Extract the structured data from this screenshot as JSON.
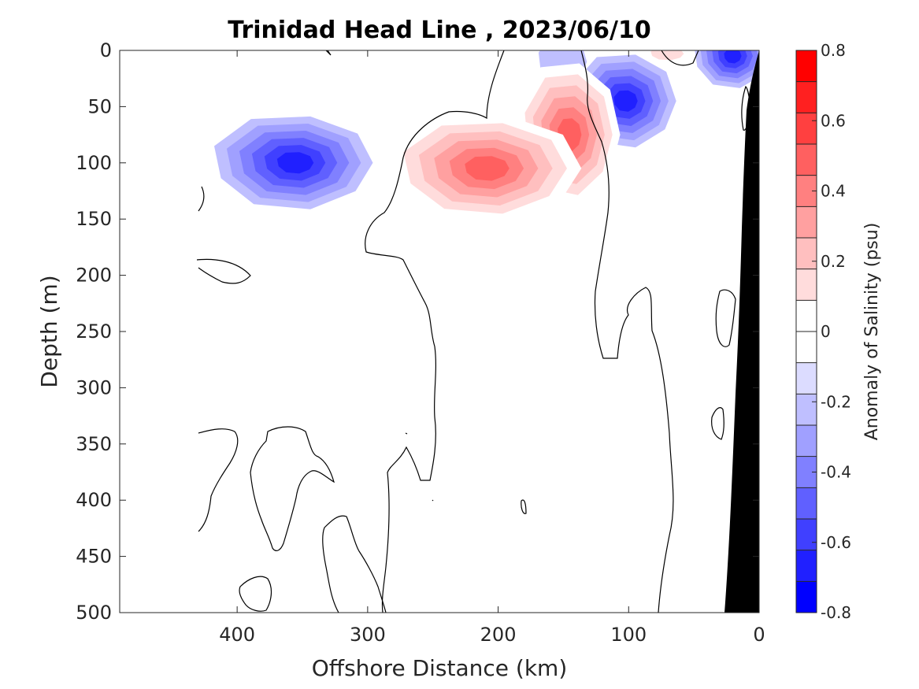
{
  "chart_data": {
    "type": "heatmap",
    "title": "Trinidad Head Line , 2023/06/10",
    "xlabel": "Offshore Distance (km)",
    "ylabel": "Depth (m)",
    "x_reversed": true,
    "y_reversed": true,
    "xlim": [
      0,
      490
    ],
    "ylim": [
      0,
      500
    ],
    "x_ticks": [
      "400",
      "300",
      "200",
      "100",
      "0"
    ],
    "x_tick_values": [
      400,
      300,
      200,
      100,
      0
    ],
    "y_ticks": [
      "0",
      "50",
      "100",
      "150",
      "200",
      "250",
      "300",
      "350",
      "400",
      "450",
      "500"
    ],
    "y_tick_values": [
      0,
      50,
      100,
      150,
      200,
      250,
      300,
      350,
      400,
      450,
      500
    ],
    "colorbar": {
      "label": "Anomaly of Salinity (psu)",
      "range": [
        -0.8,
        0.8
      ],
      "ticks": [
        "-0.8",
        "-0.6",
        "-0.4",
        "-0.2",
        "0",
        "0.2",
        "0.4",
        "0.6",
        "0.8"
      ],
      "tick_values": [
        -0.8,
        -0.6,
        -0.4,
        -0.2,
        0,
        0.2,
        0.4,
        0.6,
        0.8
      ],
      "level_step": 0.1,
      "colors": [
        "#0000ff",
        "#2020ff",
        "#4040ff",
        "#6060ff",
        "#8080ff",
        "#a0a0ff",
        "#bfbfff",
        "#dcdcff",
        "#ffffff",
        "#ffffff",
        "#ffdcdc",
        "#ffbfbf",
        "#ffa0a0",
        "#ff8080",
        "#ff6060",
        "#ff4040",
        "#ff2020",
        "#ff0000"
      ]
    },
    "anomaly_features": [
      {
        "sign": "negative",
        "center_km": 355,
        "center_depth_m": 100,
        "peak": -0.55
      },
      {
        "sign": "negative",
        "center_km": 150,
        "center_depth_m": 10,
        "peak": -0.1
      },
      {
        "sign": "negative",
        "center_km": 102,
        "center_depth_m": 45,
        "peak": -0.55
      },
      {
        "sign": "negative",
        "center_km": 20,
        "center_depth_m": 5,
        "peak": -0.55
      },
      {
        "sign": "positive",
        "center_km": 145,
        "center_depth_m": 75,
        "peak": 0.55
      },
      {
        "sign": "positive",
        "center_km": 208,
        "center_depth_m": 105,
        "peak": 0.55
      },
      {
        "sign": "positive",
        "center_km": 70,
        "center_depth_m": 3,
        "peak": 0.2
      }
    ],
    "zero_contour_color": "#000000",
    "bathymetry": {
      "color": "#000000",
      "description": "continental slope at shoreward edge"
    }
  }
}
